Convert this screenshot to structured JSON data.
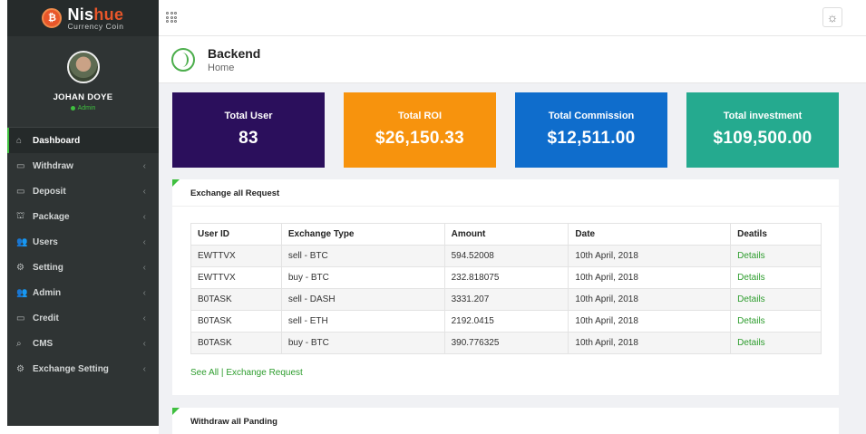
{
  "brand": {
    "name_prefix": "Nis",
    "name_highlight": "hue",
    "tagline": "Currency Coin",
    "badge": "₿"
  },
  "profile": {
    "name": "JOHAN DOYE",
    "role": "Admin"
  },
  "sidebar": {
    "items": [
      {
        "icon": "⌂",
        "icon_name": "home-icon",
        "label": "Dashboard",
        "active": true,
        "chevron": ""
      },
      {
        "icon": "▭",
        "icon_name": "card-icon",
        "label": "Withdraw",
        "chevron": "‹"
      },
      {
        "icon": "▭",
        "icon_name": "card-icon",
        "label": "Deposit",
        "chevron": "‹"
      },
      {
        "icon": "⛫",
        "icon_name": "package-icon",
        "label": "Package",
        "chevron": "‹"
      },
      {
        "icon": "👥",
        "icon_name": "users-icon",
        "label": "Users",
        "chevron": "‹"
      },
      {
        "icon": "⚙",
        "icon_name": "gear-icon",
        "label": "Setting",
        "chevron": "‹"
      },
      {
        "icon": "👥",
        "icon_name": "admin-icon",
        "label": "Admin",
        "chevron": "‹"
      },
      {
        "icon": "▭",
        "icon_name": "credit-icon",
        "label": "Credit",
        "chevron": "‹"
      },
      {
        "icon": "⌕",
        "icon_name": "search-icon",
        "label": "CMS",
        "chevron": "‹"
      },
      {
        "icon": "⚙",
        "icon_name": "gear-icon",
        "label": "Exchange Setting",
        "chevron": "‹"
      }
    ]
  },
  "topbar": {
    "apps_icon": "apps-grid-icon",
    "settings_glyph": "☼"
  },
  "page_header": {
    "title": "Backend",
    "subtitle": "Home"
  },
  "cards": [
    {
      "title": "Total User",
      "value": "83",
      "color": "#2b0f5c"
    },
    {
      "title": "Total ROI",
      "value": "$26,150.33",
      "color": "#f7930d"
    },
    {
      "title": "Total Commission",
      "value": "$12,511.00",
      "color": "#0f6dcc"
    },
    {
      "title": "Total investment",
      "value": "$109,500.00",
      "color": "#25aa8f"
    }
  ],
  "exchange_panel": {
    "title": "Exchange all Request",
    "columns": [
      "User ID",
      "Exchange Type",
      "Amount",
      "Date",
      "Deatils"
    ],
    "rows": [
      [
        "EWTTVX",
        "sell - BTC",
        "594.52008",
        "10th April, 2018",
        "Details"
      ],
      [
        "EWTTVX",
        "buy - BTC",
        "232.818075",
        "10th April, 2018",
        "Details"
      ],
      [
        "B0TASK",
        "sell - DASH",
        "3331.207",
        "10th April, 2018",
        "Details"
      ],
      [
        "B0TASK",
        "sell - ETH",
        "2192.0415",
        "10th April, 2018",
        "Details"
      ],
      [
        "B0TASK",
        "buy - BTC",
        "390.776325",
        "10th April, 2018",
        "Details"
      ]
    ],
    "see_all": "See All",
    "separator": "|",
    "exchange_request": "Exchange Request"
  },
  "withdraw_panel": {
    "title": "Withdraw all Panding"
  }
}
